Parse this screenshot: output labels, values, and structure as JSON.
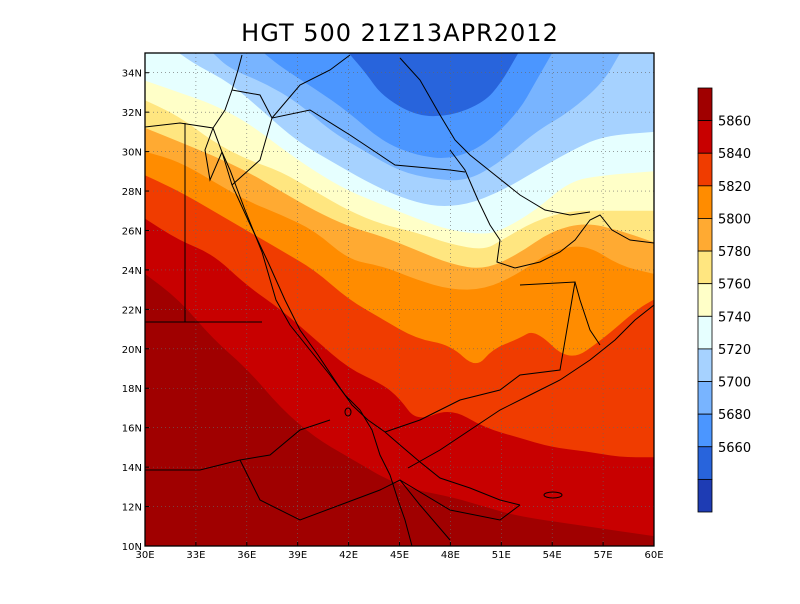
{
  "title": "HGT 500 21Z13APR2012",
  "map": {
    "lon_range": [
      30,
      60
    ],
    "lat_range": [
      10,
      35
    ],
    "x_ticks": [
      "30E",
      "33E",
      "36E",
      "39E",
      "42E",
      "45E",
      "48E",
      "51E",
      "54E",
      "57E",
      "60E"
    ],
    "y_ticks": [
      "10N",
      "12N",
      "14N",
      "16N",
      "18N",
      "20N",
      "22N",
      "24N",
      "26N",
      "28N",
      "30N",
      "32N",
      "34N"
    ],
    "grid": "dotted"
  },
  "colorbar": {
    "labels": [
      "5860",
      "5840",
      "5820",
      "5800",
      "5780",
      "5760",
      "5740",
      "5720",
      "5700",
      "5680",
      "5660"
    ],
    "colors_top_to_bottom": [
      "#a00000",
      "#c80000",
      "#f03c00",
      "#ff8c00",
      "#ffaa32",
      "#ffe680",
      "#ffffc8",
      "#e6ffff",
      "#a6d2ff",
      "#78b4ff",
      "#4b96ff",
      "#2864dc",
      "#1e3cb4"
    ]
  },
  "chart_data": {
    "type": "heatmap",
    "title": "HGT 500 21Z13APR2012",
    "xlabel": "",
    "ylabel": "",
    "x_range": [
      30,
      60
    ],
    "y_range": [
      10,
      35
    ],
    "levels": [
      5660,
      5680,
      5700,
      5720,
      5740,
      5760,
      5780,
      5800,
      5820,
      5840,
      5860
    ],
    "colors": [
      "#1e3cb4",
      "#2864dc",
      "#4b96ff",
      "#78b4ff",
      "#a6d2ff",
      "#e6ffff",
      "#ffffc8",
      "#ffe680",
      "#ffaa32",
      "#ff8c00",
      "#f03c00",
      "#c80000",
      "#a00000"
    ],
    "trough_center": [
      47.0,
      33.5
    ],
    "legend": "right"
  }
}
